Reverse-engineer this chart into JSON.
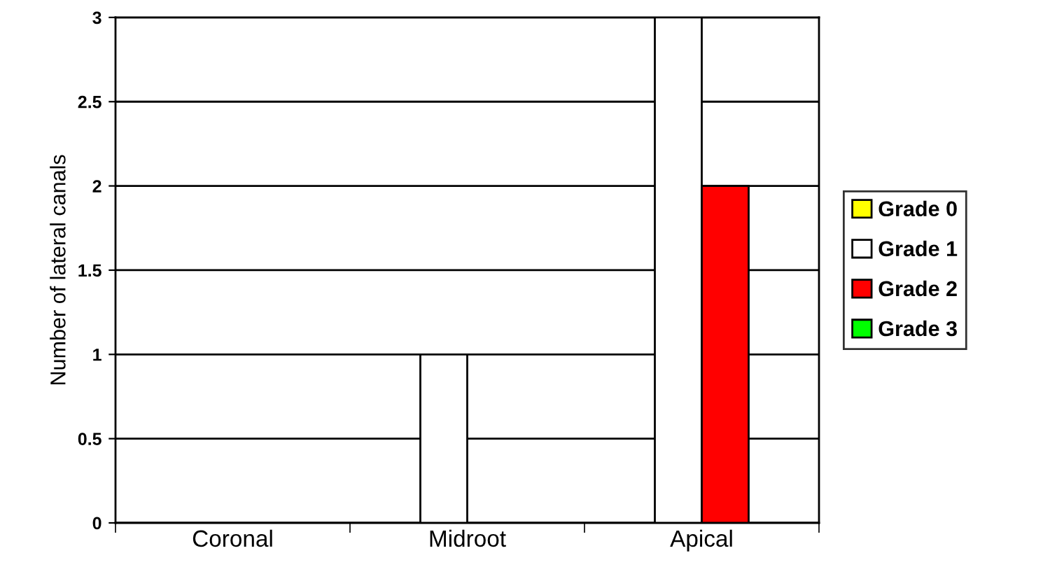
{
  "chart_data": {
    "type": "bar",
    "ylabel": "Number of lateral canals",
    "categories": [
      "Coronal",
      "Midroot",
      "Apical"
    ],
    "series": [
      {
        "name": "Grade 0",
        "color": "#ffff00",
        "values": [
          0,
          0,
          0
        ]
      },
      {
        "name": "Grade 1",
        "color": "#ffffff",
        "values": [
          0,
          1,
          3
        ]
      },
      {
        "name": "Grade 2",
        "color": "#ff0000",
        "values": [
          0,
          0,
          2
        ]
      },
      {
        "name": "Grade 3",
        "color": "#00ff00",
        "values": [
          0,
          0,
          0
        ]
      }
    ],
    "ylim": [
      0,
      3
    ],
    "yticks": [
      0,
      0.5,
      1,
      1.5,
      2,
      2.5,
      3
    ],
    "grid": "y",
    "legend": "right"
  }
}
